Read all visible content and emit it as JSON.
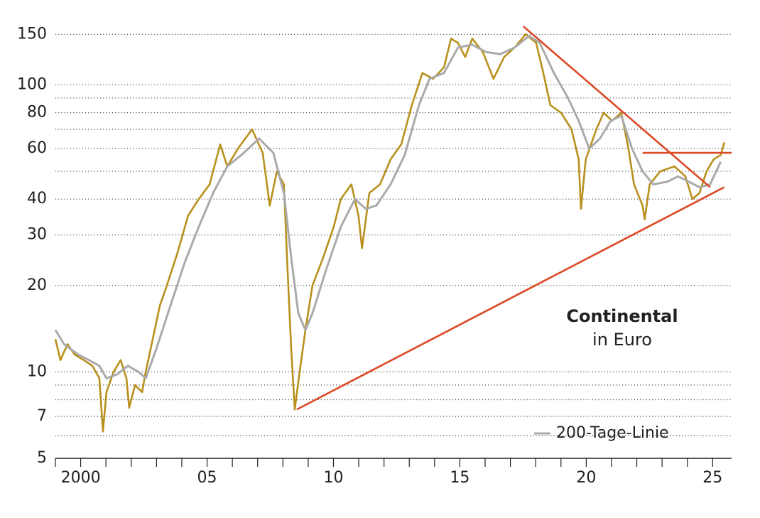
{
  "chart_data": {
    "type": "line",
    "title": "Continental",
    "subtitle": "in Euro",
    "log_scale_y": true,
    "grid": true,
    "legend_position": "lower right",
    "xlim": [
      1999,
      2025.75
    ],
    "ylim": [
      5,
      160
    ],
    "xticks": [
      2000,
      {
        "value": 2005,
        "label": "05"
      },
      {
        "value": 2010,
        "label": "10"
      },
      {
        "value": 2015,
        "label": "15"
      },
      {
        "value": 2020,
        "label": "20"
      },
      {
        "value": 2025,
        "label": "25"
      }
    ],
    "minor_xticks": [
      1999,
      2001,
      2002,
      2003,
      2004,
      2006,
      2007,
      2008,
      2009,
      2011,
      2012,
      2013,
      2014,
      2016,
      2017,
      2018,
      2019,
      2021,
      2022,
      2023,
      2024
    ],
    "yticks": [
      5,
      7,
      10,
      20,
      30,
      40,
      60,
      80,
      100,
      150
    ],
    "minor_yticks": [
      6,
      8,
      9,
      50,
      70,
      90
    ],
    "series": [
      {
        "color": "#b8901c",
        "x": [
          1999.0,
          1999.2,
          1999.48,
          1999.76,
          2000.12,
          2000.46,
          2000.74,
          2000.88,
          2001.02,
          2001.3,
          2001.58,
          2001.81,
          2001.92,
          2002.15,
          2002.43,
          2002.57,
          2002.85,
          2003.13,
          2003.41,
          2003.83,
          2004.25,
          2004.67,
          2005.1,
          2005.52,
          2005.8,
          2006.22,
          2006.78,
          2007.2,
          2007.48,
          2007.76,
          2008.04,
          2008.19,
          2008.33,
          2008.47,
          2008.66,
          2008.89,
          2009.17,
          2009.59,
          2010.01,
          2010.29,
          2010.71,
          2010.99,
          2011.13,
          2011.42,
          2011.84,
          2012.26,
          2012.68,
          2013.1,
          2013.52,
          2013.94,
          2014.37,
          2014.65,
          2014.93,
          2015.21,
          2015.49,
          2015.91,
          2016.33,
          2016.75,
          2017.17,
          2017.6,
          2018.02,
          2018.3,
          2018.58,
          2019.0,
          2019.42,
          2019.7,
          2019.79,
          2019.98,
          2020.4,
          2020.69,
          2021.02,
          2021.39,
          2021.67,
          2021.89,
          2022.23,
          2022.31,
          2022.51,
          2022.93,
          2023.49,
          2023.92,
          2024.2,
          2024.48,
          2024.76,
          2025.04,
          2025.32,
          2025.46
        ],
        "values": [
          13,
          11,
          12.5,
          11.5,
          11,
          10.5,
          9.5,
          6.2,
          8.5,
          10,
          11,
          9.5,
          7.5,
          9,
          8.5,
          10,
          13,
          17,
          20,
          26,
          35,
          40,
          45,
          62,
          52,
          60,
          70,
          58,
          38,
          50,
          45,
          22,
          12,
          7.4,
          10,
          14,
          20,
          25,
          32,
          40,
          45,
          35,
          27,
          42,
          45,
          55,
          62,
          85,
          110,
          105,
          115,
          145,
          140,
          125,
          145,
          130,
          105,
          125,
          135,
          150,
          140,
          110,
          85,
          80,
          70,
          55,
          37,
          55,
          70,
          80,
          75,
          80,
          60,
          45,
          38,
          34,
          45,
          50,
          52,
          48,
          40,
          42,
          50,
          55,
          57,
          63
        ]
      },
      {
        "name": "200-Tage-Linie",
        "color": "#aaaaaa",
        "x": [
          1999.0,
          1999.34,
          1999.9,
          2000.32,
          2000.74,
          2001.02,
          2001.44,
          2001.87,
          2002.29,
          2002.57,
          2002.99,
          2003.55,
          2004.11,
          2004.67,
          2005.24,
          2005.8,
          2006.36,
          2007.06,
          2007.62,
          2008.04,
          2008.33,
          2008.61,
          2008.89,
          2009.17,
          2009.73,
          2010.29,
          2010.85,
          2011.28,
          2011.7,
          2012.26,
          2012.82,
          2013.38,
          2013.8,
          2014.37,
          2014.93,
          2015.49,
          2016.05,
          2016.61,
          2017.17,
          2017.74,
          2018.16,
          2018.72,
          2019.28,
          2019.7,
          2020.12,
          2020.54,
          2020.97,
          2021.39,
          2021.81,
          2022.23,
          2022.65,
          2023.21,
          2023.63,
          2024.06,
          2024.48,
          2024.9,
          2025.32
        ],
        "values": [
          14,
          12.5,
          11.5,
          11,
          10.5,
          9.5,
          9.8,
          10.5,
          10,
          9.5,
          12,
          17,
          24,
          32,
          42,
          52,
          57,
          65,
          58,
          42,
          25,
          16,
          14,
          16,
          23,
          32,
          40,
          37,
          38,
          45,
          57,
          85,
          105,
          110,
          135,
          138,
          130,
          128,
          135,
          148,
          140,
          110,
          90,
          75,
          60,
          65,
          75,
          78,
          60,
          50,
          45,
          46,
          48,
          46,
          44,
          45,
          54
        ]
      }
    ],
    "trend_lines": {
      "color": "#dc4a26",
      "lines": [
        {
          "x": [
            2008.55,
            2025.46
          ],
          "y": [
            7.4,
            44
          ]
        },
        {
          "x": [
            2017.51,
            2024.9
          ],
          "y": [
            160,
            44
          ]
        },
        {
          "x": [
            2022.23,
            2025.75
          ],
          "y": [
            58,
            58
          ]
        }
      ]
    }
  }
}
